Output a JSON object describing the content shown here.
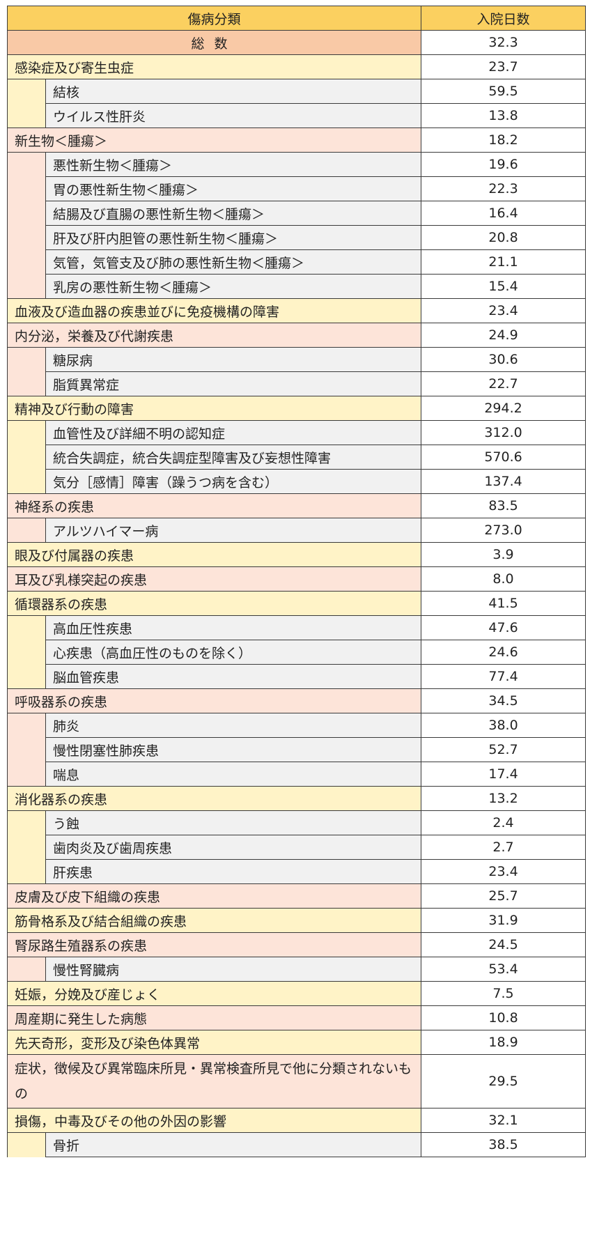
{
  "header": {
    "category": "傷病分類",
    "days": "入院日数"
  },
  "total": {
    "label": "総数",
    "value": "32.3"
  },
  "groups": [
    {
      "name": "感染症及び寄生虫症",
      "value": "23.7",
      "color": "#fff3c7",
      "subs": [
        {
          "name": "結核",
          "value": "59.5"
        },
        {
          "name": "ウイルス性肝炎",
          "value": "13.8"
        }
      ]
    },
    {
      "name": "新生物＜腫瘍＞",
      "value": "18.2",
      "color": "#fde4d9",
      "subs": [
        {
          "name": "悪性新生物＜腫瘍＞",
          "value": "19.6"
        },
        {
          "name": "胃の悪性新生物＜腫瘍＞",
          "value": "22.3"
        },
        {
          "name": "結腸及び直腸の悪性新生物＜腫瘍＞",
          "value": "16.4"
        },
        {
          "name": "肝及び肝内胆管の悪性新生物＜腫瘍＞",
          "value": "20.8"
        },
        {
          "name": "気管，気管支及び肺の悪性新生物＜腫瘍＞",
          "value": "21.1"
        },
        {
          "name": "乳房の悪性新生物＜腫瘍＞",
          "value": "15.4"
        }
      ]
    },
    {
      "name": "血液及び造血器の疾患並びに免疫機構の障害",
      "value": "23.4",
      "color": "#fff3c7",
      "subs": []
    },
    {
      "name": "内分泌，栄養及び代謝疾患",
      "value": "24.9",
      "color": "#fde4d9",
      "subs": [
        {
          "name": "糖尿病",
          "value": "30.6"
        },
        {
          "name": "脂質異常症",
          "value": "22.7"
        }
      ]
    },
    {
      "name": "精神及び行動の障害",
      "value": "294.2",
      "color": "#fff3c7",
      "subs": [
        {
          "name": "血管性及び詳細不明の認知症",
          "value": "312.0"
        },
        {
          "name": "統合失調症，統合失調症型障害及び妄想性障害",
          "value": "570.6"
        },
        {
          "name": "気分［感情］障害（躁うつ病を含む）",
          "value": "137.4"
        }
      ]
    },
    {
      "name": "神経系の疾患",
      "value": "83.5",
      "color": "#fde4d9",
      "subs": [
        {
          "name": "アルツハイマー病",
          "value": "273.0"
        }
      ]
    },
    {
      "name": "眼及び付属器の疾患",
      "value": "3.9",
      "color": "#fff3c7",
      "subs": []
    },
    {
      "name": "耳及び乳様突起の疾患",
      "value": "8.0",
      "color": "#fde4d9",
      "subs": []
    },
    {
      "name": "循環器系の疾患",
      "value": "41.5",
      "color": "#fff3c7",
      "subs": [
        {
          "name": "高血圧性疾患",
          "value": "47.6"
        },
        {
          "name": "心疾患（高血圧性のものを除く）",
          "value": "24.6"
        },
        {
          "name": "脳血管疾患",
          "value": "77.4"
        }
      ]
    },
    {
      "name": "呼吸器系の疾患",
      "value": "34.5",
      "color": "#fde4d9",
      "subs": [
        {
          "name": "肺炎",
          "value": "38.0"
        },
        {
          "name": "慢性閉塞性肺疾患",
          "value": "52.7"
        },
        {
          "name": "喘息",
          "value": "17.4"
        }
      ]
    },
    {
      "name": "消化器系の疾患",
      "value": "13.2",
      "color": "#fff3c7",
      "subs": [
        {
          "name": "う蝕",
          "value": "2.4"
        },
        {
          "name": "歯肉炎及び歯周疾患",
          "value": "2.7"
        },
        {
          "name": "肝疾患",
          "value": "23.4"
        }
      ]
    },
    {
      "name": "皮膚及び皮下組織の疾患",
      "value": "25.7",
      "color": "#fde4d9",
      "subs": []
    },
    {
      "name": "筋骨格系及び結合組織の疾患",
      "value": "31.9",
      "color": "#fff3c7",
      "subs": []
    },
    {
      "name": "腎尿路生殖器系の疾患",
      "value": "24.5",
      "color": "#fde4d9",
      "subs": [
        {
          "name": "慢性腎臓病",
          "value": "53.4"
        }
      ]
    },
    {
      "name": "妊娠，分娩及び産じょく",
      "value": "7.5",
      "color": "#fff3c7",
      "subs": []
    },
    {
      "name": "周産期に発生した病態",
      "value": "10.8",
      "color": "#fde4d9",
      "subs": []
    },
    {
      "name": "先天奇形，変形及び染色体異常",
      "value": "18.9",
      "color": "#fff3c7",
      "subs": []
    },
    {
      "name": "症状，徴候及び異常臨床所見・異常検査所見で他に分類されないもの",
      "value": "29.5",
      "color": "#fde4d9",
      "tall": true,
      "subs": []
    },
    {
      "name": "損傷，中毒及びその他の外因の影響",
      "value": "32.1",
      "color": "#fff3c7",
      "subs": [
        {
          "name": "骨折",
          "value": "38.5"
        }
      ]
    }
  ]
}
